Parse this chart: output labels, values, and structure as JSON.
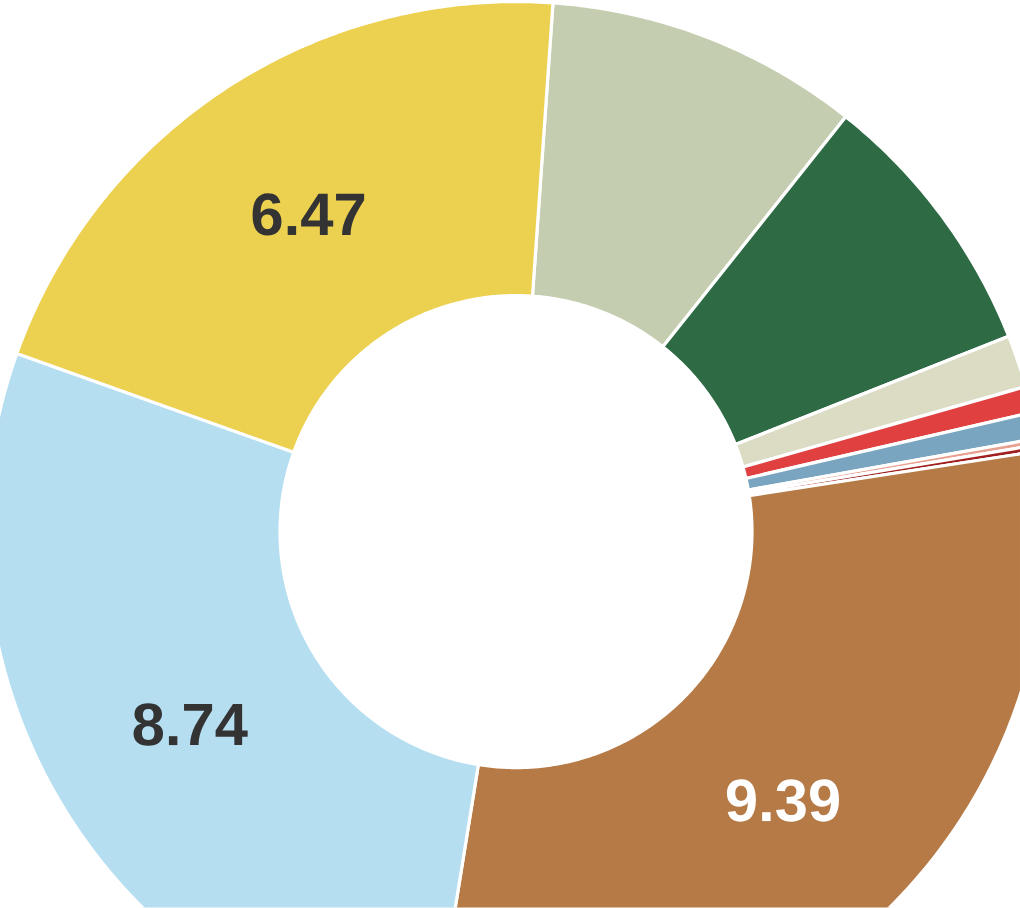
{
  "chart_data": {
    "type": "donut",
    "categories": [
      null,
      null,
      null,
      null,
      null,
      null,
      null,
      null,
      null,
      null
    ],
    "values": [
      3.0,
      2.6,
      0.5,
      0.25,
      0.25,
      0.06,
      0.06,
      9.39,
      8.74,
      6.47
    ],
    "colors": [
      "#c5cdb0",
      "#2e6b45",
      "#dcdcc4",
      "#e04040",
      "#7aa5c0",
      "#e8a090",
      "#a02020",
      "#b57a45",
      "#b5dff0",
      "#ecd050"
    ],
    "value_labels": [
      null,
      null,
      null,
      null,
      null,
      null,
      null,
      "9.39",
      "8.74",
      "6.47"
    ]
  }
}
